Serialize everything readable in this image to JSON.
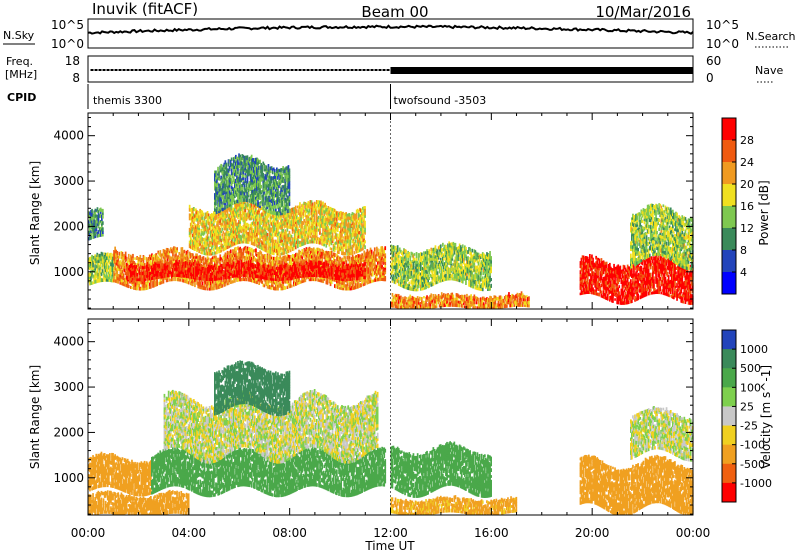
{
  "header": {
    "station": "Inuvik (fitACF)",
    "beam": "Beam 00",
    "date": "10/Mar/2016"
  },
  "noise_panel": {
    "left_label": "N.Sky",
    "left_ticks": [
      "10^5",
      "10^0"
    ],
    "right_label": "N.Search",
    "right_ticks": [
      "10^5",
      "10^0"
    ]
  },
  "freq_panel": {
    "left_label_line1": "Freq.",
    "left_label_line2": "[MHz]",
    "left_ticks": [
      "18",
      "8"
    ],
    "right_label": "Nave",
    "right_ticks": [
      "60",
      "0"
    ]
  },
  "cpid": {
    "label": "CPID",
    "modes": [
      "themis 3300",
      "twofsound -3503"
    ],
    "mode_change_hour": 12.0
  },
  "x_axis": {
    "label": "Time UT",
    "ticks": [
      "00:00",
      "04:00",
      "08:00",
      "12:00",
      "16:00",
      "20:00",
      "00:00"
    ],
    "range_hours": [
      0,
      24
    ]
  },
  "chart_data": [
    {
      "type": "heatmap",
      "title": "",
      "xlabel": "Time UT",
      "ylabel": "Slant Range [km]",
      "xlim_hours": [
        0,
        24
      ],
      "ylim_km": [
        180,
        4500
      ],
      "y_ticks": [
        "1000",
        "2000",
        "3000",
        "4000"
      ],
      "colorbar": {
        "label": "Power [dB]",
        "ticks": [
          "4",
          "8",
          "12",
          "16",
          "20",
          "24",
          "28"
        ],
        "range": [
          0,
          30
        ],
        "colors": [
          "#0000ff",
          "#2244bb",
          "#3a8a5a",
          "#7ec850",
          "#f0e020",
          "#f09a20",
          "#f05a10",
          "#ff0000"
        ]
      },
      "echo_regions": [
        {
          "t_start": 0.0,
          "t_end": 1.0,
          "range_low": 700,
          "range_high": 1300,
          "value": 14
        },
        {
          "t_start": 0.0,
          "t_end": 0.6,
          "range_low": 1700,
          "range_high": 2300,
          "value": 10
        },
        {
          "t_start": 1.0,
          "t_end": 11.8,
          "range_low": 700,
          "range_high": 1400,
          "value": 22
        },
        {
          "t_start": 1.5,
          "t_end": 11.0,
          "range_low": 850,
          "range_high": 1150,
          "value": 28
        },
        {
          "t_start": 4.0,
          "t_end": 11.0,
          "range_low": 1500,
          "range_high": 2400,
          "value": 18
        },
        {
          "t_start": 5.0,
          "t_end": 8.0,
          "range_low": 2400,
          "range_high": 3400,
          "value": 10
        },
        {
          "t_start": 12.0,
          "t_end": 16.0,
          "range_low": 700,
          "range_high": 1500,
          "value": 14
        },
        {
          "t_start": 12.0,
          "t_end": 17.5,
          "range_low": 200,
          "range_high": 450,
          "value": 22
        },
        {
          "t_start": 19.5,
          "t_end": 24.0,
          "range_low": 400,
          "range_high": 1200,
          "value": 28
        },
        {
          "t_start": 21.5,
          "t_end": 24.0,
          "range_low": 1200,
          "range_high": 2300,
          "value": 14
        }
      ]
    },
    {
      "type": "heatmap",
      "title": "",
      "xlabel": "Time UT",
      "ylabel": "Slant Range [km]",
      "xlim_hours": [
        0,
        24
      ],
      "ylim_km": [
        180,
        4500
      ],
      "y_ticks": [
        "1000",
        "2000",
        "3000",
        "4000"
      ],
      "colorbar": {
        "label": "Velocity [m s^-1]",
        "ticks": [
          "1000",
          "500",
          "100",
          "25",
          "-25",
          "-100",
          "-500",
          "-1000"
        ],
        "range": [
          -1000,
          1000
        ],
        "colors": [
          "#2244bb",
          "#3a8a5a",
          "#4aa84a",
          "#7ed04e",
          "#c8c8c8",
          "#f0d020",
          "#f0a020",
          "#f06010",
          "#ff0000"
        ]
      },
      "echo_regions": [
        {
          "t_start": 0.0,
          "t_end": 2.5,
          "range_low": 700,
          "range_high": 1400,
          "value": -300
        },
        {
          "t_start": 0.0,
          "t_end": 4.0,
          "range_low": 150,
          "range_high": 600,
          "value": -200
        },
        {
          "t_start": 2.5,
          "t_end": 11.8,
          "range_low": 700,
          "range_high": 1500,
          "value": 300
        },
        {
          "t_start": 3.0,
          "t_end": 11.5,
          "range_low": 1500,
          "range_high": 2700,
          "value": 0
        },
        {
          "t_start": 5.0,
          "t_end": 8.0,
          "range_low": 2500,
          "range_high": 3400,
          "value": 800
        },
        {
          "t_start": 12.0,
          "t_end": 16.0,
          "range_low": 700,
          "range_high": 1600,
          "value": 200
        },
        {
          "t_start": 12.0,
          "t_end": 17.0,
          "range_low": 200,
          "range_high": 500,
          "value": -150
        },
        {
          "t_start": 19.5,
          "t_end": 24.0,
          "range_low": 300,
          "range_high": 1300,
          "value": -400
        },
        {
          "t_start": 21.5,
          "t_end": 24.0,
          "range_low": 1500,
          "range_high": 2400,
          "value": 0
        }
      ]
    }
  ]
}
